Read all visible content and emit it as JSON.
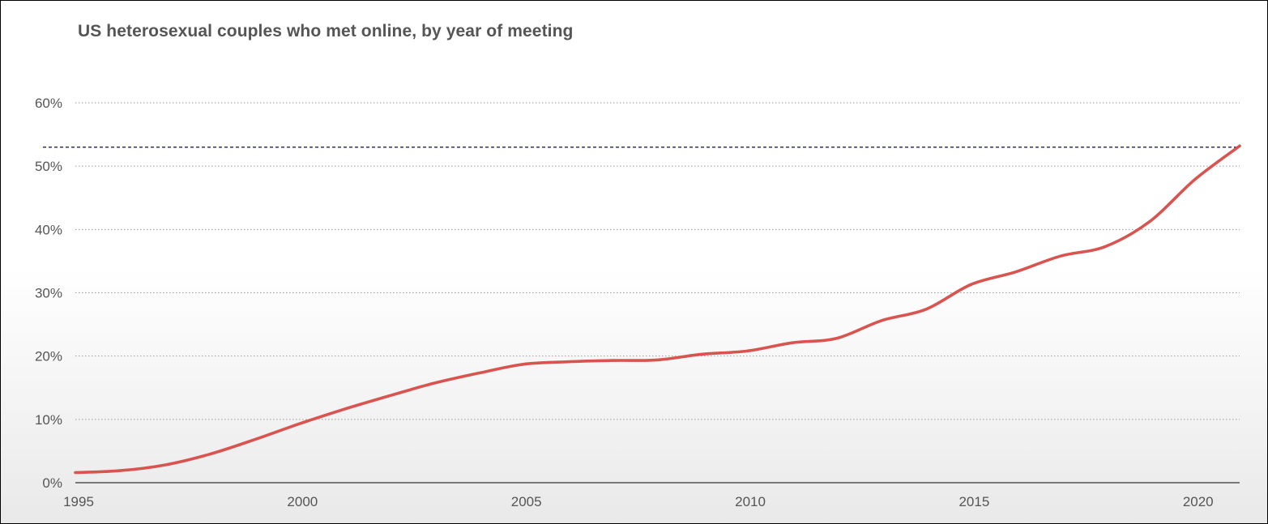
{
  "chart_data": {
    "type": "line",
    "title": "US heterosexual couples who met online, by year of meeting",
    "xlabel": "",
    "ylabel": "",
    "xlim": [
      1995,
      2021
    ],
    "ylim": [
      0,
      60
    ],
    "x_ticks": [
      "1995",
      "2000",
      "2005",
      "2010",
      "2015",
      "2020"
    ],
    "y_ticks": [
      "0%",
      "10%",
      "20%",
      "30%",
      "40%",
      "50%",
      "60%"
    ],
    "grid": "horizontal-dotted",
    "series": [
      {
        "color": "#d9534f",
        "x": [
          1995,
          1996,
          1997,
          1998,
          1999,
          2000,
          2001,
          2002,
          2003,
          2004,
          2005,
          2006,
          2007,
          2008,
          2009,
          2010,
          2011,
          2012,
          2013,
          2014,
          2015,
          2016,
          2017,
          2018,
          2019,
          2020,
          2021
        ],
        "y": [
          1.6,
          1.9,
          2.8,
          4.5,
          6.8,
          9.3,
          11.6,
          13.7,
          15.7,
          17.3,
          18.7,
          19.1,
          19.3,
          19.4,
          20.3,
          20.8,
          22.1,
          22.8,
          25.6,
          27.4,
          31.3,
          33.3,
          35.8,
          37.3,
          41.3,
          47.9,
          53.2
        ]
      }
    ],
    "reference_line": {
      "y": 53,
      "color": "#1a1a8c",
      "style": "dashed"
    }
  }
}
